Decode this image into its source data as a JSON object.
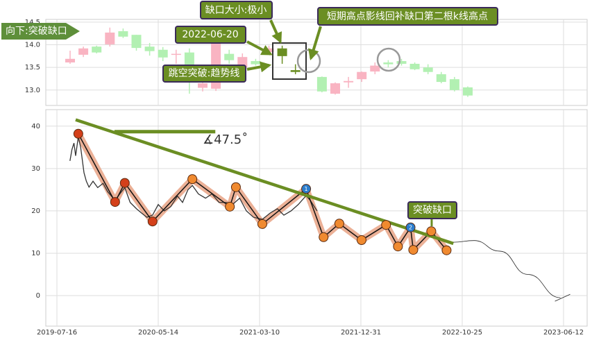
{
  "chart_data": [
    {
      "type": "candlestick",
      "open": [
        13.61,
        13.78,
        13.96,
        14.01,
        14.3,
        14.22,
        13.96,
        13.89,
        13.78,
        13.83,
        13.05,
        13.03,
        13.8,
        13.5,
        13.64,
        13.84,
        13.92,
        13.44,
        null,
        13.29,
        12.92,
        13.17,
        13.24,
        13.41,
        13.61,
        13.64,
        13.58,
        13.5,
        13.35,
        13.24,
        13.06
      ],
      "high": [
        13.87,
        13.96,
        13.98,
        14.38,
        14.36,
        14.22,
        14.04,
        13.95,
        13.89,
        13.92,
        13.34,
        14.22,
        13.89,
        13.81,
        13.69,
        13.98,
        13.98,
        13.57,
        null,
        13.3,
        13.17,
        13.29,
        13.41,
        13.61,
        13.66,
        13.69,
        13.61,
        13.57,
        13.4,
        13.29,
        13.08
      ],
      "low": [
        13.58,
        13.73,
        13.81,
        13.96,
        14.15,
        13.87,
        13.76,
        13.64,
        13.58,
        12.92,
        12.97,
        12.98,
        13.58,
        13.46,
        13.54,
        13.81,
        13.58,
        13.35,
        null,
        12.95,
        12.9,
        13.05,
        13.18,
        13.35,
        13.5,
        13.54,
        13.44,
        13.35,
        13.15,
        12.97,
        12.85
      ],
      "close": [
        13.69,
        13.92,
        13.83,
        14.27,
        14.18,
        13.93,
        13.86,
        13.72,
        13.8,
        13.46,
        13.15,
        14.04,
        13.66,
        13.73,
        13.57,
        13.92,
        13.75,
        13.4,
        null,
        12.97,
        13.15,
        13.2,
        13.4,
        13.54,
        13.57,
        13.58,
        13.46,
        13.4,
        13.18,
        13.0,
        12.88
      ],
      "up_color": "#f9b4c2",
      "down_color": "#b2f0b2",
      "highlight_color": "#6b8e23",
      "highlight": [
        16,
        17
      ],
      "ylim": [
        12.66,
        14.56
      ],
      "yticks": [
        {
          "value": 13,
          "label": "13.0"
        },
        13.5,
        {
          "value": 14,
          "label": "14.0"
        },
        14.5
      ],
      "grid": true,
      "annotations": [
        "向下:突破缺口",
        "缺口大小:极小",
        "短期高点影线回补缺口第二根k线高点",
        "2022-06-20",
        "跳空突破:趋势线"
      ]
    },
    {
      "type": "line",
      "xlim": [
        "2019-06-13",
        "2023-08-05"
      ],
      "xticks": [
        "2019-07-16",
        "2020-05-14",
        "2021-03-10",
        "2021-12-31",
        "2022-10-25",
        "2023-06-12"
      ],
      "ylim": [
        -7.2,
        43.9
      ],
      "yticks": [
        0,
        10,
        20,
        30,
        40
      ],
      "grid": true,
      "price": {
        "color": "#333333",
        "x": [
          "2019-08-24",
          "2019-08-30",
          "2019-09-05",
          "2019-09-10",
          "2019-09-18",
          "2019-09-25",
          "2019-10-05",
          "2019-10-12",
          "2019-10-20",
          "2019-11-01",
          "2019-11-15",
          "2019-12-01",
          "2019-12-15",
          "2020-01-06",
          "2020-01-20",
          "2020-02-04",
          "2020-02-20",
          "2020-03-10",
          "2020-03-25",
          "2020-04-10",
          "2020-04-27",
          "2020-05-14",
          "2020-06-01",
          "2020-06-20",
          "2020-07-10",
          "2020-07-25",
          "2020-08-10",
          "2020-08-23",
          "2020-09-10",
          "2020-10-01",
          "2020-10-20",
          "2020-11-10",
          "2020-12-01",
          "2020-12-20",
          "2021-01-10",
          "2021-01-30",
          "2021-02-20",
          "2021-03-18",
          "2021-04-10",
          "2021-05-01",
          "2021-05-20",
          "2021-06-10",
          "2021-07-01",
          "2021-07-24",
          "2021-08-05",
          "2021-08-25"
        ],
        "values": [
          31.8,
          34.5,
          36,
          33,
          37.5,
          35,
          29,
          27,
          25.6,
          27,
          25.5,
          26.5,
          24.5,
          22.5,
          24,
          25.5,
          22,
          20.5,
          19.5,
          18.5,
          19,
          21.5,
          20,
          21,
          23.5,
          22,
          25,
          26,
          24,
          23,
          24,
          22,
          22,
          21.5,
          23,
          20,
          18.5,
          18,
          19.5,
          20.5,
          19,
          20,
          21.5,
          23.6,
          22.5,
          20
        ]
      },
      "zigzag": {
        "color": "#111111",
        "band_color": "#e8a284",
        "x": [
          "2019-09-18",
          "2020-01-06",
          "2020-02-04",
          "2020-04-27",
          "2020-08-23",
          "2020-12-12",
          "2020-12-30",
          "2021-03-18",
          "2021-07-24",
          "2021-09-13",
          "2021-10-29",
          "2022-01-02",
          "2022-03-15",
          "2022-04-19",
          "2022-05-26",
          "2022-06-03",
          "2022-07-26",
          "2022-09-09"
        ],
        "values": [
          38.2,
          22.1,
          26.6,
          17.5,
          27.5,
          21.0,
          25.6,
          16.9,
          25.2,
          13.8,
          17.0,
          13.1,
          16.7,
          11.6,
          16.1,
          10.8,
          15.2,
          10.7
        ],
        "point_colors": [
          "#d4401a",
          "#d4401a",
          "#d4401a",
          "#d4401a",
          "#f08a30",
          "#f08a30",
          "#f08a30",
          "#f08a30",
          "#2a7ccc",
          "#f08a30",
          "#f08a30",
          "#f08a30",
          "#f08a30",
          "#f08a30",
          "#2a7ccc",
          "#f08a30",
          "#f08a30",
          "#f08a30"
        ],
        "point_labels": [
          null,
          null,
          null,
          null,
          null,
          null,
          null,
          null,
          "1",
          null,
          null,
          null,
          null,
          null,
          "2",
          null,
          null,
          null
        ]
      },
      "trend_line": {
        "color": "#6b8e23",
        "x": [
          "2019-09-10",
          "2022-09-29"
        ],
        "values": [
          41.5,
          12.3
        ]
      },
      "horizontal_line": {
        "color": "#6b8e23",
        "x": [
          "2020-01-04",
          "2020-10-30"
        ],
        "values": [
          38.7,
          38.7
        ]
      },
      "angle_label": "∡47.5˚",
      "projection": {
        "color": "#222222",
        "x": [
          "2022-09-29",
          "2022-11-21",
          "2023-01-18",
          "2023-03-23",
          "2023-06-05"
        ],
        "values": [
          12.6,
          13,
          10.5,
          5,
          -0.5
        ]
      },
      "label": "突破缺口"
    }
  ]
}
